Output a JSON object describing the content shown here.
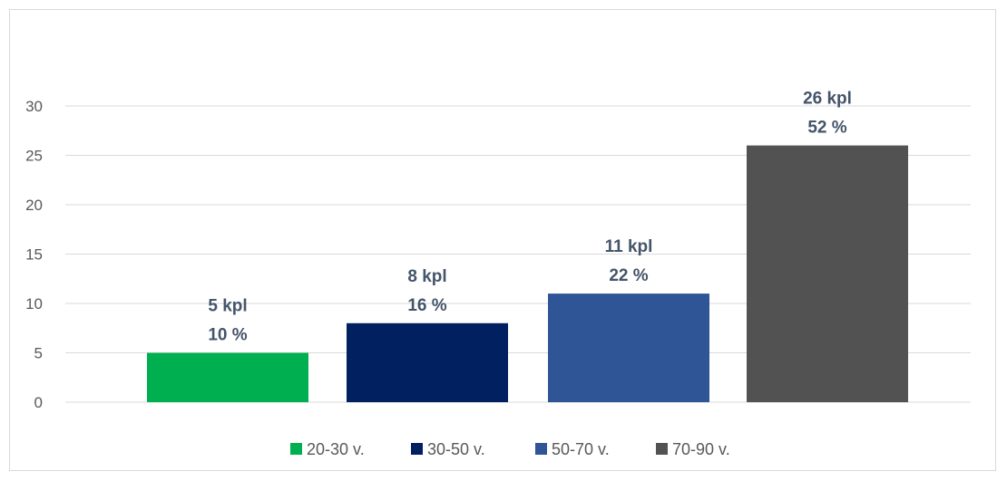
{
  "chart_data": {
    "type": "bar",
    "title": "",
    "xlabel": "",
    "ylabel": "",
    "ylim": [
      0,
      30
    ],
    "yticks": [
      0,
      5,
      10,
      15,
      20,
      25,
      30
    ],
    "grid": true,
    "legend_position": "bottom",
    "series": [
      {
        "name": "20-30 v.",
        "value": 5,
        "label_count": "5 kpl",
        "label_pct": "10 %",
        "color": "#00b050"
      },
      {
        "name": "30-50 v.",
        "value": 8,
        "label_count": "8 kpl",
        "label_pct": "16 %",
        "color": "#002060"
      },
      {
        "name": "50-70 v.",
        "value": 11,
        "label_count": "11 kpl",
        "label_pct": "22 %",
        "color": "#2f5597"
      },
      {
        "name": "70-90 v.",
        "value": 26,
        "label_count": "26 kpl",
        "label_pct": "52 %",
        "color": "#525252"
      }
    ]
  }
}
